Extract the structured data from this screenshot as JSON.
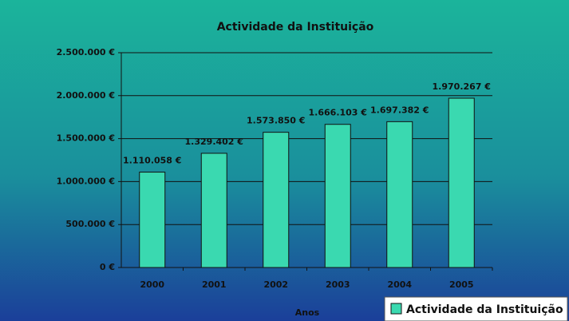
{
  "chart_data": {
    "type": "bar",
    "title": "Actividade da Instituição",
    "x_label": "Anos",
    "categories": [
      "2000",
      "2001",
      "2002",
      "2003",
      "2004",
      "2005"
    ],
    "series": [
      {
        "name": "Actividade da Instituição",
        "color": "#3ad9b0",
        "values": [
          1110058,
          1329402,
          1573850,
          1666103,
          1697382,
          1970267
        ],
        "value_labels": [
          "1.110.058 €",
          "1.329.402 €",
          "1.573.850 €",
          "1.666.103 €",
          "1.697.382 €",
          "1.970.267 €"
        ]
      }
    ],
    "ylim": [
      0,
      2500000
    ],
    "yticks": [
      {
        "value": 0,
        "label": "0 €"
      },
      {
        "value": 500000,
        "label": "500.000 €"
      },
      {
        "value": 1000000,
        "label": "1.000.000 €"
      },
      {
        "value": 1500000,
        "label": "1.500.000 €"
      },
      {
        "value": 2000000,
        "label": "2.000.000 €"
      },
      {
        "value": 2500000,
        "label": "2.500.000 €"
      }
    ],
    "grid": true,
    "legend": "bottom-right"
  }
}
